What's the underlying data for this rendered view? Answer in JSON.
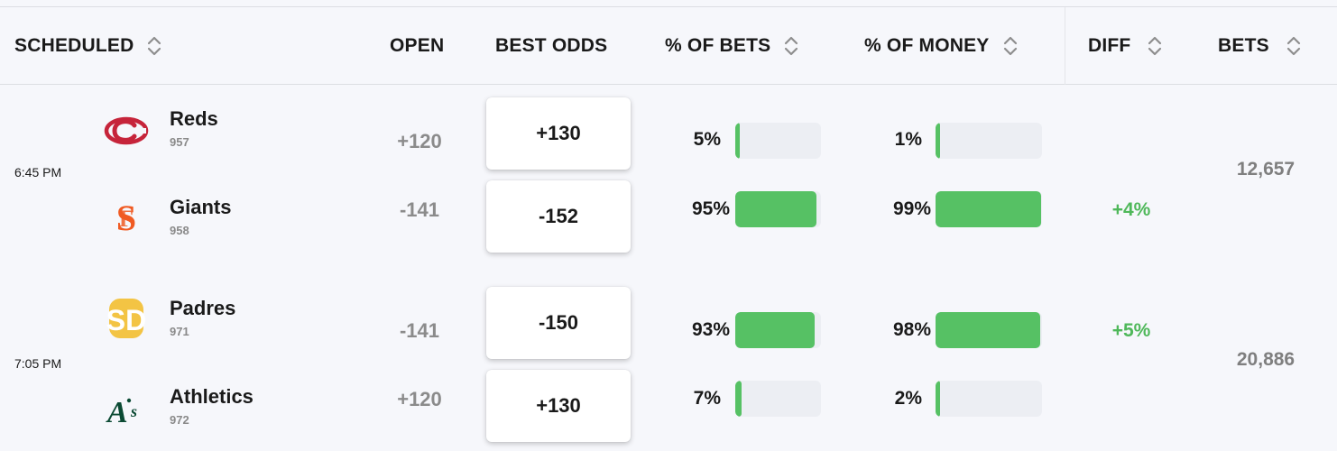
{
  "header": {
    "scheduled": "SCHEDULED",
    "open": "OPEN",
    "best_odds": "BEST ODDS",
    "pct_bets": "% OF BETS",
    "pct_money": "% OF MONEY",
    "diff": "DIFF",
    "bets": "BETS"
  },
  "games": [
    {
      "time": "6:45 PM",
      "bets": "12,657",
      "diff": "+4%",
      "teams": [
        {
          "name": "Reds",
          "number": "957",
          "open": "+120",
          "best_odds": "+130",
          "pct_bets": "5%",
          "pct_bets_value": 0.05,
          "pct_money": "1%",
          "pct_money_value": 0.01,
          "logo": "reds-logo"
        },
        {
          "name": "Giants",
          "number": "958",
          "open": "-141",
          "best_odds": "-152",
          "pct_bets": "95%",
          "pct_bets_value": 0.95,
          "pct_money": "99%",
          "pct_money_value": 0.99,
          "logo": "giants-logo"
        }
      ]
    },
    {
      "time": "7:05 PM",
      "bets": "20,886",
      "diff": "+5%",
      "teams": [
        {
          "name": "Padres",
          "number": "971",
          "open": "-141",
          "best_odds": "-150",
          "pct_bets": "93%",
          "pct_bets_value": 0.93,
          "pct_money": "98%",
          "pct_money_value": 0.98,
          "logo": "padres-logo"
        },
        {
          "name": "Athletics",
          "number": "972",
          "open": "+120",
          "best_odds": "+130",
          "pct_bets": "7%",
          "pct_bets_value": 0.07,
          "pct_money": "2%",
          "pct_money_value": 0.02,
          "logo": "athletics-logo"
        }
      ]
    }
  ],
  "colors": {
    "bar_fill": "#56c164",
    "bar_track": "#eceef3",
    "diff_positive": "#4fb85a",
    "reds": "#c6243a",
    "giants": "#f05a22",
    "padres": "#f3c444",
    "athletics": "#0b4a33"
  }
}
